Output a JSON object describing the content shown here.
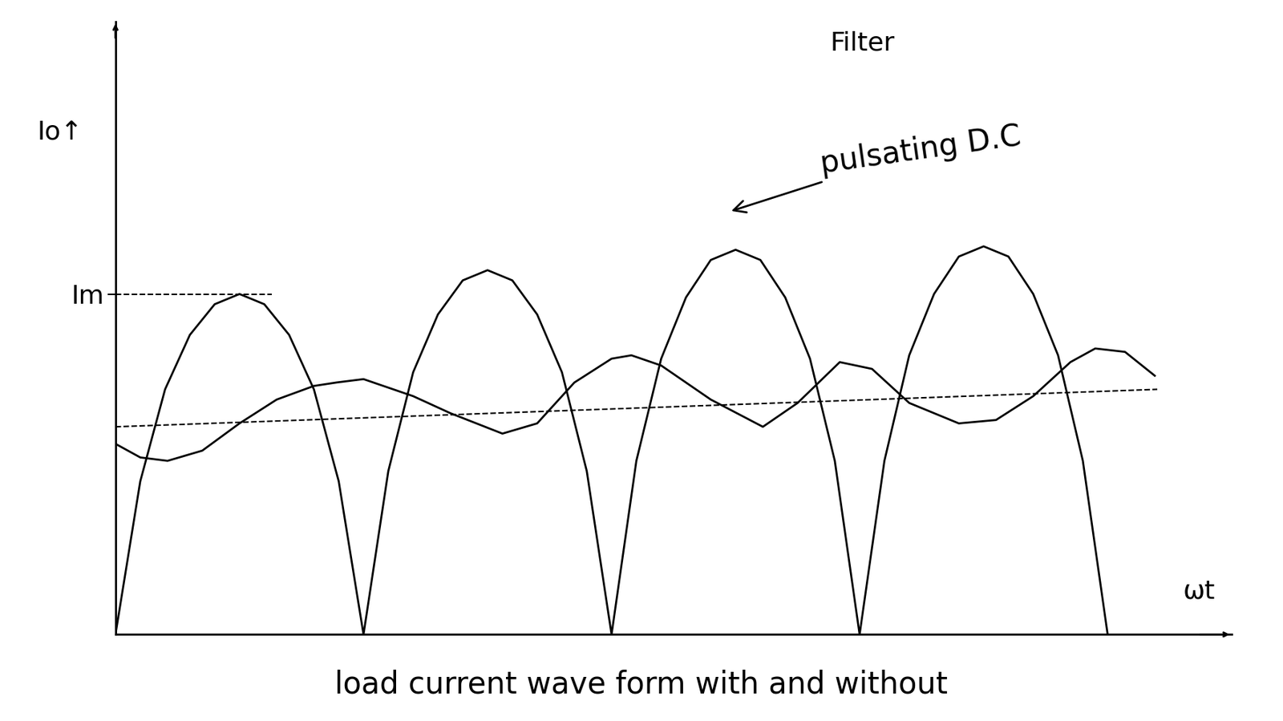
{
  "chart_data": {
    "type": "line",
    "caption": "load current wave form with and without",
    "top_text": "Filter",
    "ylabel": "Io↑",
    "xlabel": "ωt",
    "xlim": [
      0,
      4.5
    ],
    "ylim": [
      0,
      1.8
    ],
    "yticks": [
      {
        "value": 1.0,
        "label": "Im"
      }
    ],
    "tick_labels": "y",
    "annotations": [
      {
        "text": "pulsating D.C"
      }
    ],
    "series": [
      {
        "color": "#000000",
        "line_style": "solid",
        "x": [
          0,
          0.1,
          0.2,
          0.3,
          0.4,
          0.5,
          0.6,
          0.7,
          0.8,
          0.9,
          1.0,
          1.1,
          1.2,
          1.3,
          1.4,
          1.5,
          1.6,
          1.7,
          1.8,
          1.9,
          2.0,
          2.1,
          2.2,
          2.3,
          2.4,
          2.5,
          2.6,
          2.7,
          2.8,
          2.9,
          3.0,
          3.1,
          3.2,
          3.3,
          3.4,
          3.5,
          3.6,
          3.7,
          3.8,
          3.9,
          4.0
        ],
        "values": [
          0,
          0.45,
          0.72,
          0.88,
          0.97,
          1.0,
          0.97,
          0.88,
          0.72,
          0.45,
          0,
          0.48,
          0.77,
          0.94,
          1.04,
          1.07,
          1.04,
          0.94,
          0.77,
          0.48,
          0,
          0.51,
          0.81,
          0.99,
          1.1,
          1.13,
          1.1,
          0.99,
          0.81,
          0.51,
          0,
          0.51,
          0.82,
          1.0,
          1.11,
          1.14,
          1.11,
          1.0,
          0.82,
          0.51,
          0
        ]
      },
      {
        "color": "#000000",
        "line_style": "solid",
        "x": [
          0,
          0.1,
          0.21,
          0.35,
          0.5,
          0.65,
          0.8,
          0.89,
          1.0,
          1.08,
          1.2,
          1.35,
          1.56,
          1.7,
          1.85,
          2.0,
          2.08,
          2.2,
          2.4,
          2.61,
          2.75,
          2.92,
          3.05,
          3.2,
          3.4,
          3.55,
          3.7,
          3.85,
          3.95,
          4.07,
          4.19
        ],
        "values": [
          0.56,
          0.52,
          0.51,
          0.54,
          0.62,
          0.69,
          0.73,
          0.74,
          0.75,
          0.73,
          0.7,
          0.65,
          0.59,
          0.62,
          0.74,
          0.81,
          0.82,
          0.79,
          0.69,
          0.61,
          0.68,
          0.8,
          0.78,
          0.68,
          0.62,
          0.63,
          0.7,
          0.8,
          0.84,
          0.83,
          0.76
        ]
      },
      {
        "color": "#000000",
        "line_style": "dashed",
        "x": [
          0,
          4.2
        ],
        "values": [
          0.61,
          0.72
        ]
      },
      {
        "color": "#000000",
        "line_style": "dashed",
        "x": [
          0,
          0.63
        ],
        "values": [
          1.0,
          1.0
        ]
      }
    ]
  }
}
